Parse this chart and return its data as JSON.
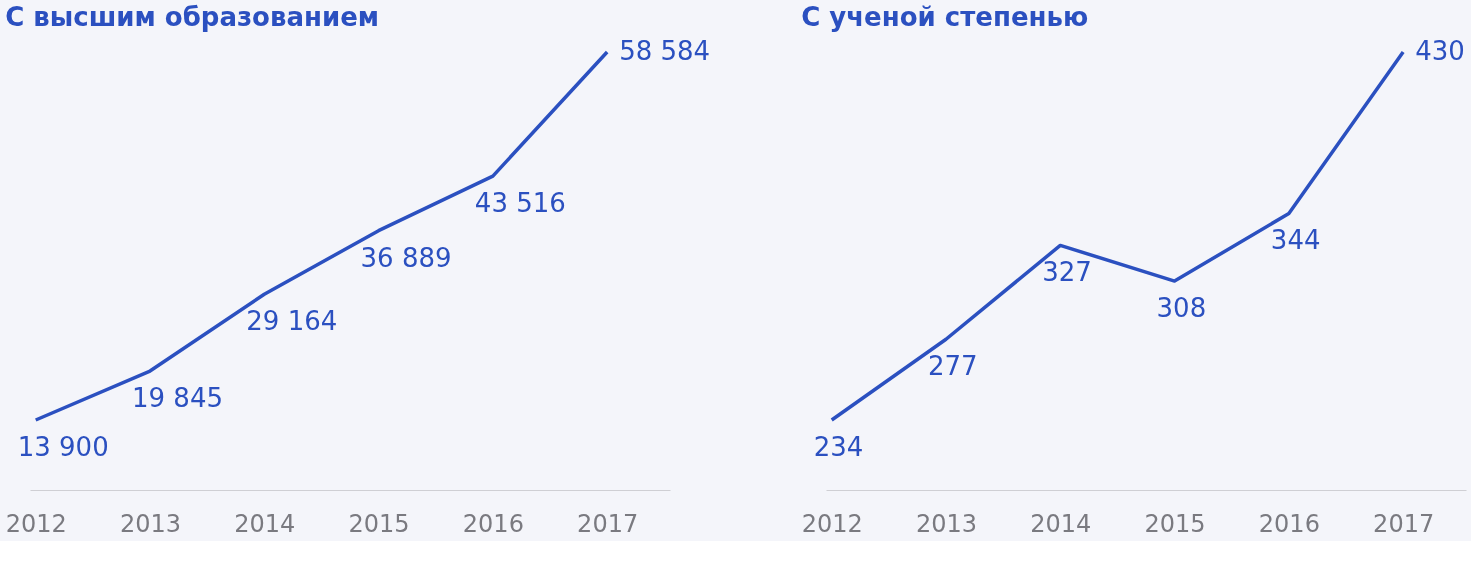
{
  "chart_data": [
    {
      "type": "line",
      "title": "С высшим образованием",
      "categories": [
        "2012",
        "2013",
        "2014",
        "2015",
        "2016",
        "2017"
      ],
      "values": [
        13900,
        19845,
        29164,
        36889,
        43516,
        58584
      ],
      "value_labels": [
        "13 900",
        "19 845",
        "29 164",
        "36 889",
        "43 516",
        "58 584"
      ],
      "color": "#2b50c0"
    },
    {
      "type": "line",
      "title": "С ученой степенью",
      "categories": [
        "2012",
        "2013",
        "2014",
        "2015",
        "2016",
        "2017"
      ],
      "values": [
        234,
        277,
        327,
        308,
        344,
        430
      ],
      "value_labels": [
        "234",
        "277",
        "327",
        "308",
        "344",
        "430"
      ],
      "color": "#2b50c0"
    }
  ]
}
